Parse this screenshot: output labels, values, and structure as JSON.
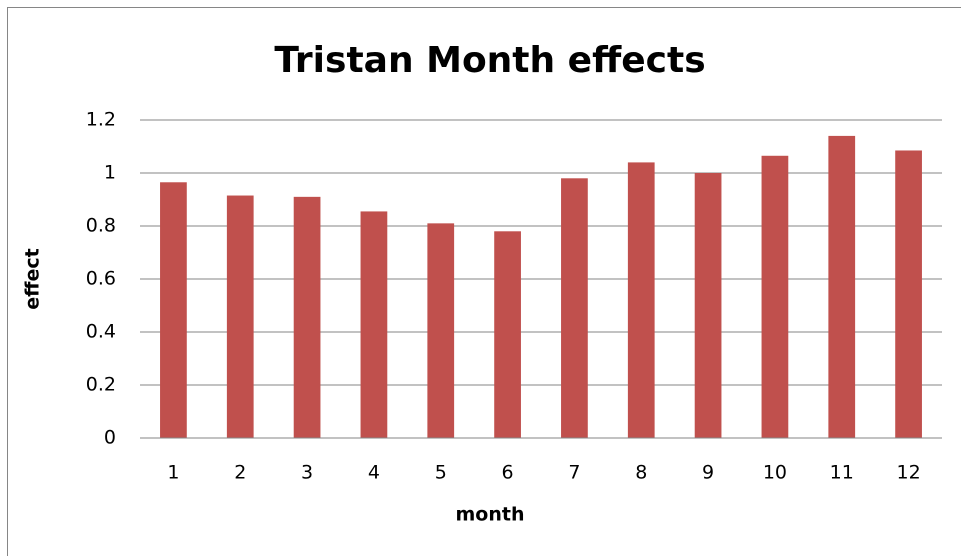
{
  "chart_data": {
    "type": "bar",
    "title": "Tristan Month effects",
    "x_label": "month",
    "y_label": "effect",
    "categories": [
      "1",
      "2",
      "3",
      "4",
      "5",
      "6",
      "7",
      "8",
      "9",
      "10",
      "11",
      "12"
    ],
    "values": [
      0.965,
      0.915,
      0.91,
      0.855,
      0.81,
      0.78,
      0.98,
      1.04,
      1.0,
      1.065,
      1.14,
      1.085
    ],
    "color": "#c0504d",
    "ylim": [
      0,
      1.2
    ],
    "yticks": [
      0,
      0.2,
      0.4,
      0.6,
      0.8,
      1,
      1.2
    ],
    "grid": true
  }
}
